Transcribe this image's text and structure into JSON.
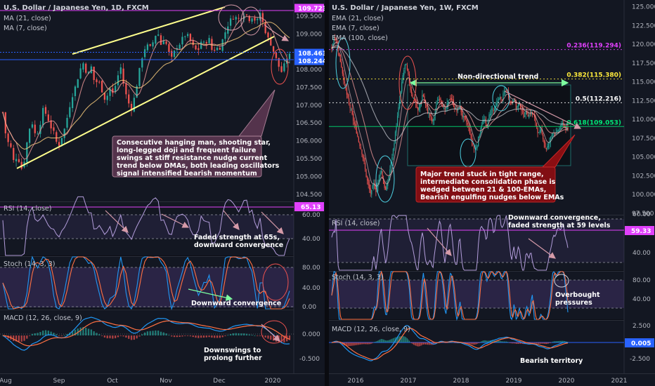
{
  "chart_data": [
    {
      "type": "candlestick",
      "title": "U.S. Dollar / Japanese Yen, 1D, FXCM",
      "legend": [
        "MA (21, close)",
        "MA (7, close)"
      ],
      "price_axis": {
        "ticks": [
          "109.500",
          "109.000",
          "108.500",
          "108.000",
          "107.500",
          "107.000",
          "106.500",
          "106.000",
          "105.500",
          "105.000",
          "104.500"
        ],
        "ylim": [
          104.3,
          109.95
        ]
      },
      "price_badges": [
        {
          "label": "109.723",
          "value": 109.723,
          "color": "#e040fb"
        },
        {
          "label": "108.463",
          "value": 108.463,
          "color": "#2962ff"
        },
        {
          "label": "108.244",
          "value": 108.244,
          "color": "#2962ff"
        }
      ],
      "x_ticks": [
        "Aug",
        "Sep",
        "Oct",
        "Nov",
        "Dec",
        "2020"
      ],
      "price_path": [
        106.8,
        106.0,
        105.9,
        105.4,
        105.6,
        105.2,
        105.5,
        106.3,
        106.5,
        106.1,
        106.4,
        106.9,
        106.7,
        106.4,
        106.2,
        105.8,
        106.1,
        106.4,
        106.9,
        107.3,
        107.6,
        108.0,
        108.2,
        107.8,
        108.1,
        107.6,
        107.7,
        107.4,
        107.1,
        107.5,
        107.3,
        107.7,
        108.1,
        107.5,
        107.1,
        106.9,
        107.3,
        107.9,
        108.4,
        108.7,
        108.6,
        108.8,
        109.1,
        108.7,
        108.9,
        108.5,
        108.3,
        108.6,
        108.7,
        108.9,
        109.0,
        108.8,
        108.6,
        108.5,
        108.8,
        108.7,
        108.9,
        108.5,
        108.6,
        108.6,
        108.9,
        109.2,
        109.4,
        109.5,
        109.4,
        109.5,
        109.6,
        109.4,
        109.5,
        109.3,
        109.6,
        109.2,
        108.9,
        108.7,
        108.4,
        108.1,
        107.9,
        108.3,
        108.4
      ],
      "rsi": {
        "label": "RSI (14, close)",
        "ticks": [
          "60.00",
          "40.00"
        ],
        "badge": "65.13",
        "annotation": [
          "Faded strength at 65s,",
          "downward convergence"
        ]
      },
      "stoch": {
        "label": "Stoch (14, 3, 3)",
        "ticks": [
          "80.00",
          "40.00",
          "0.00"
        ],
        "annotation": "Downward convergence"
      },
      "macd": {
        "label": "MACD (12, 26, close, 9)",
        "ticks": [
          "0.000",
          "-0.500"
        ],
        "annotation": [
          "Downswings to",
          "prolong further"
        ]
      },
      "callout": [
        "Consecutive hanging man, shooting star,",
        "long-legged doji and frequent failure",
        "swings at stiff resistance nudge current",
        "trend below DMAs, both leading oscillators",
        "signal intensified bearish momentum"
      ]
    },
    {
      "type": "candlestick",
      "title": "U.S. Dollar / Japanese Yen, 1W, FXCM",
      "legend": [
        "EMA (21, close)",
        "EMA (7, close)",
        "EMA (100, close)"
      ],
      "price_axis": {
        "ticks": [
          "125.000",
          "122.500",
          "120.000",
          "117.500",
          "115.000",
          "112.500",
          "110.000",
          "107.500",
          "105.000",
          "102.500",
          "100.000",
          "97.500"
        ],
        "ylim": [
          97.3,
          125.9
        ]
      },
      "fib_levels": [
        {
          "label": "0.236(119.294)",
          "value": 119.294,
          "color": "#e040fb"
        },
        {
          "label": "0.382(115.380)",
          "value": 115.38,
          "color": "#ffeb3b"
        },
        {
          "label": "0.5(112.216)",
          "value": 112.216,
          "color": "#ffffff"
        },
        {
          "label": "0.618(109.053)",
          "value": 109.053,
          "color": "#00e676"
        }
      ],
      "x_ticks": [
        "2016",
        "2017",
        "2018",
        "2019",
        "2020",
        "2021"
      ],
      "range_label": "Non-directional trend",
      "price_path": [
        119.5,
        121.0,
        120.5,
        118.5,
        117.0,
        115.0,
        113.5,
        112.0,
        111.0,
        109.5,
        108.5,
        107.0,
        106.0,
        104.5,
        102.5,
        101.0,
        100.0,
        101.5,
        100.5,
        102.0,
        103.5,
        101.5,
        100.5,
        102.0,
        104.0,
        106.0,
        108.5,
        111.0,
        113.5,
        116.0,
        117.5,
        116.0,
        114.0,
        113.0,
        112.5,
        111.0,
        112.0,
        113.5,
        112.0,
        111.0,
        110.5,
        109.5,
        111.0,
        112.5,
        113.0,
        112.0,
        111.0,
        112.0,
        113.0,
        112.5,
        111.5,
        111.0,
        112.0,
        110.5,
        110.0,
        109.5,
        108.5,
        107.0,
        106.0,
        106.5,
        108.0,
        109.5,
        110.0,
        109.0,
        110.5,
        111.5,
        111.0,
        112.0,
        113.0,
        112.5,
        113.5,
        114.0,
        113.0,
        112.0,
        113.0,
        111.5,
        112.0,
        111.5,
        110.5,
        111.0,
        110.5,
        111.0,
        110.5,
        109.5,
        108.0,
        108.5,
        107.5,
        106.0,
        106.5,
        107.5,
        108.5,
        108.0,
        108.5,
        109.0,
        109.5,
        108.8,
        108.5
      ],
      "callout": [
        "Major trend stuck in tight range,",
        "intermediate consolidation phase is",
        "wedged between 21 & 100-EMAs,",
        "Bearish engulfing nudges below EMAs"
      ],
      "rsi": {
        "label": "RSI (14, close)",
        "ticks": [
          "60.00",
          "40.00"
        ],
        "badge": "59.33",
        "annotation": [
          "Downward convergence,",
          "faded strength at 59 levels"
        ]
      },
      "stoch": {
        "label": "Stoch (14, 3, 3)",
        "ticks": [
          "80.00",
          "40.00"
        ],
        "annotation": [
          "Overbought",
          "pressures"
        ]
      },
      "macd": {
        "label": "MACD (12, 26, close, 9)",
        "ticks": [
          "2.500",
          "-2.500"
        ],
        "badge": "0.005",
        "annotation": "Bearish territory"
      }
    }
  ]
}
